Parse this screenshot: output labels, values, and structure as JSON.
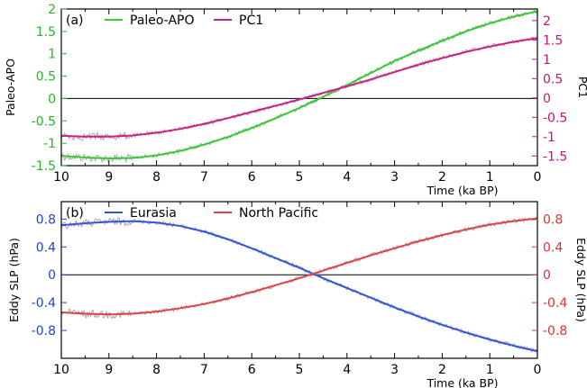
{
  "chart_data": [
    {
      "panel_label": "(a)",
      "type": "line",
      "xlabel": "Time (ka BP)",
      "xlim": [
        10,
        0
      ],
      "xticks": [
        10,
        9,
        8,
        7,
        6,
        5,
        4,
        3,
        2,
        1,
        0
      ],
      "left_axis": {
        "label": "Paleo-APO",
        "ylim": [
          -1.5,
          2
        ],
        "ticks": [
          -1.5,
          -1,
          -0.5,
          0,
          0.5,
          1,
          1.5,
          2
        ],
        "tick_labels": [
          "-1.5",
          "-1",
          "-0.5",
          "0",
          "0.5",
          "1",
          "1.5",
          "2"
        ],
        "color": "#22bb22"
      },
      "right_axis": {
        "label": "PC1",
        "ylim": [
          -1.75,
          2.3
        ],
        "ticks": [
          -1.5,
          -1,
          -0.5,
          0,
          0.5,
          1,
          1.5,
          2
        ],
        "tick_labels": [
          "-1.5",
          "-1",
          "-0.5",
          "0",
          "0.5",
          "1",
          "1.5",
          "2"
        ],
        "color": "#cc1177"
      },
      "legend": "top",
      "zero_line": true,
      "series": [
        {
          "name": "Paleo-APO",
          "axis": "left",
          "color": "#33cc33",
          "noise_color": "#999999",
          "x": [
            10,
            9.5,
            9,
            8.5,
            8,
            7.5,
            7,
            6.5,
            6,
            5.5,
            5,
            4.5,
            4,
            3.5,
            3,
            2.5,
            2,
            1.5,
            1,
            0.5,
            0
          ],
          "y": [
            -1.28,
            -1.32,
            -1.34,
            -1.33,
            -1.27,
            -1.17,
            -1.03,
            -0.86,
            -0.66,
            -0.44,
            -0.21,
            0.04,
            0.3,
            0.57,
            0.84,
            1.07,
            1.29,
            1.5,
            1.68,
            1.83,
            1.95
          ]
        },
        {
          "name": "PC1",
          "axis": "right",
          "color": "#cc2288",
          "noise_color": "#999999",
          "x": [
            10,
            9.5,
            9,
            8.5,
            8,
            7.5,
            7,
            6.5,
            6,
            5.5,
            5,
            4.5,
            4,
            3.5,
            3,
            2.5,
            2,
            1.5,
            1,
            0.5,
            0
          ],
          "y": [
            -0.98,
            -1.0,
            -1.0,
            -0.97,
            -0.9,
            -0.8,
            -0.67,
            -0.52,
            -0.36,
            -0.2,
            -0.04,
            0.13,
            0.3,
            0.48,
            0.67,
            0.86,
            1.03,
            1.19,
            1.33,
            1.45,
            1.55
          ]
        }
      ]
    },
    {
      "panel_label": "(b)",
      "type": "line",
      "xlabel": "Time (ka BP)",
      "xlim": [
        10,
        0
      ],
      "xticks": [
        10,
        9,
        8,
        7,
        6,
        5,
        4,
        3,
        2,
        1,
        0
      ],
      "left_axis": {
        "label": "Eddy SLP (hPa)",
        "ylim": [
          -1.2,
          1.05
        ],
        "ticks": [
          -0.8,
          -0.4,
          0,
          0.4,
          0.8
        ],
        "tick_labels": [
          "-0.8",
          "-0.4",
          "0",
          "0.4",
          "0.8"
        ],
        "color": "#2244cc"
      },
      "right_axis": {
        "label": "Eddy SLP (hPa)",
        "ylim": [
          -1.2,
          1.05
        ],
        "ticks": [
          -0.8,
          -0.4,
          0,
          0.4,
          0.8
        ],
        "tick_labels": [
          "-0.8",
          "-0.4",
          "0",
          "0.4",
          "0.8"
        ],
        "color": "#dd3333"
      },
      "legend": "top",
      "zero_line": true,
      "series": [
        {
          "name": "Eurasia",
          "axis": "left",
          "color": "#3355dd",
          "noise_color": "#999999",
          "x": [
            10,
            9.5,
            9,
            8.5,
            8,
            7.5,
            7,
            6.5,
            6,
            5.5,
            5,
            4.5,
            4,
            3.5,
            3,
            2.5,
            2,
            1.5,
            1,
            0.5,
            0
          ],
          "y": [
            0.71,
            0.74,
            0.76,
            0.77,
            0.75,
            0.7,
            0.62,
            0.51,
            0.38,
            0.24,
            0.1,
            -0.05,
            -0.19,
            -0.33,
            -0.47,
            -0.6,
            -0.72,
            -0.83,
            -0.93,
            -1.02,
            -1.1
          ]
        },
        {
          "name": "North Pacific",
          "axis": "right",
          "color": "#dd4444",
          "noise_color": "#999999",
          "x": [
            10,
            9.5,
            9,
            8.5,
            8,
            7.5,
            7,
            6.5,
            6,
            5.5,
            5,
            4.5,
            4,
            3.5,
            3,
            2.5,
            2,
            1.5,
            1,
            0.5,
            0
          ],
          "y": [
            -0.54,
            -0.56,
            -0.57,
            -0.56,
            -0.53,
            -0.48,
            -0.42,
            -0.34,
            -0.25,
            -0.15,
            -0.05,
            0.06,
            0.17,
            0.28,
            0.38,
            0.48,
            0.57,
            0.65,
            0.72,
            0.77,
            0.81
          ]
        }
      ]
    }
  ]
}
